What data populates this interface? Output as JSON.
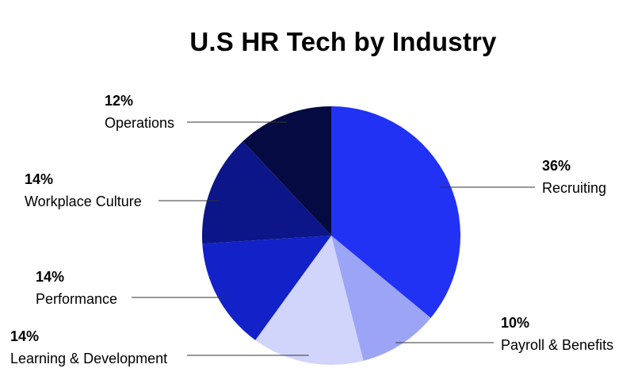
{
  "chart_data": {
    "type": "pie",
    "title": "U.S HR Tech by Industry",
    "slices": [
      {
        "label": "Recruiting",
        "value": 36,
        "display": "36%",
        "color": "#2132f5"
      },
      {
        "label": "Payroll & Benefits",
        "value": 10,
        "display": "10%",
        "color": "#9ca4f6"
      },
      {
        "label": "Learning & Development",
        "value": 14,
        "display": "14%",
        "color": "#d1d5fb"
      },
      {
        "label": "Performance",
        "value": 14,
        "display": "14%",
        "color": "#1222c8"
      },
      {
        "label": "Workplace Culture",
        "value": 14,
        "display": "14%",
        "color": "#0c1689"
      },
      {
        "label": "Operations",
        "value": 12,
        "display": "12%",
        "color": "#050b42"
      }
    ],
    "start": "top",
    "direction": "clockwise"
  }
}
